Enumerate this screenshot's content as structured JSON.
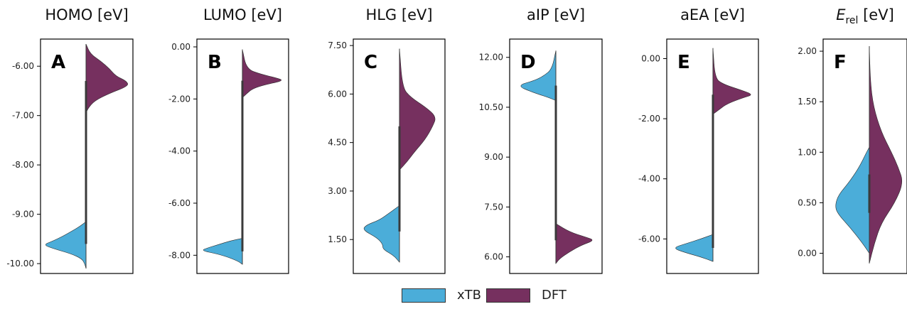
{
  "colors": {
    "xtb": "#4badd9",
    "dft": "#76305f",
    "axis": "#000000",
    "median": "#3a3a3a"
  },
  "legend": {
    "items": [
      {
        "label": "xTB",
        "color": "#4badd9"
      },
      {
        "label": "DFT",
        "color": "#76305f"
      }
    ]
  },
  "chart_data": [
    {
      "type": "violin",
      "letter": "A",
      "title": "HOMO [eV]",
      "ylim": [
        -10.2,
        -5.45
      ],
      "ticks": [
        -10.0,
        -9.0,
        -8.0,
        -7.0,
        -6.0
      ],
      "tick_labels": [
        "-10.00",
        "-9.00",
        "-8.00",
        "-7.00",
        "-6.00"
      ],
      "series": [
        {
          "name": "xTB",
          "side": "left",
          "range": [
            -10.1,
            -9.15
          ],
          "iqr": [
            -9.6,
            -9.2
          ],
          "profile": [
            [
              -10.1,
              0
            ],
            [
              -10.0,
              0.03
            ],
            [
              -9.9,
              0.1
            ],
            [
              -9.8,
              0.35
            ],
            [
              -9.7,
              0.75
            ],
            [
              -9.62,
              1.0
            ],
            [
              -9.55,
              0.8
            ],
            [
              -9.45,
              0.55
            ],
            [
              -9.35,
              0.35
            ],
            [
              -9.25,
              0.15
            ],
            [
              -9.15,
              0
            ]
          ]
        },
        {
          "name": "DFT",
          "side": "right",
          "range": [
            -6.95,
            -5.55
          ],
          "iqr": [
            -6.85,
            -6.3
          ],
          "profile": [
            [
              -6.95,
              0
            ],
            [
              -6.85,
              0.05
            ],
            [
              -6.7,
              0.2
            ],
            [
              -6.55,
              0.55
            ],
            [
              -6.4,
              1.0
            ],
            [
              -6.3,
              0.95
            ],
            [
              -6.2,
              0.7
            ],
            [
              -6.05,
              0.55
            ],
            [
              -5.9,
              0.35
            ],
            [
              -5.75,
              0.1
            ],
            [
              -5.55,
              0
            ]
          ]
        }
      ],
      "whisker": [
        -9.6,
        -6.3
      ],
      "center": -7.45
    },
    {
      "type": "violin",
      "letter": "B",
      "title": "LUMO [eV]",
      "ylim": [
        -8.7,
        0.3
      ],
      "ticks": [
        0.0,
        -2.0,
        -4.0,
        -6.0,
        -8.0
      ],
      "tick_labels": [
        "0.00",
        "-2.00",
        "-4.00",
        "-6.00",
        "-8.00"
      ],
      "series": [
        {
          "name": "xTB",
          "side": "left",
          "range": [
            -8.35,
            -7.35
          ],
          "iqr": [
            -7.85,
            -7.4
          ],
          "profile": [
            [
              -8.35,
              0
            ],
            [
              -8.25,
              0.08
            ],
            [
              -8.1,
              0.3
            ],
            [
              -7.95,
              0.6
            ],
            [
              -7.82,
              1.0
            ],
            [
              -7.72,
              0.85
            ],
            [
              -7.6,
              0.6
            ],
            [
              -7.45,
              0.3
            ],
            [
              -7.35,
              0
            ]
          ]
        },
        {
          "name": "DFT",
          "side": "right",
          "range": [
            -1.95,
            -0.1
          ],
          "iqr": [
            -1.85,
            -1.3
          ],
          "profile": [
            [
              -1.95,
              0
            ],
            [
              -1.8,
              0.1
            ],
            [
              -1.6,
              0.25
            ],
            [
              -1.45,
              0.55
            ],
            [
              -1.3,
              1.0
            ],
            [
              -1.2,
              0.85
            ],
            [
              -1.05,
              0.45
            ],
            [
              -0.85,
              0.1
            ],
            [
              -0.1,
              0
            ]
          ]
        }
      ],
      "whisker": [
        -7.85,
        -1.3
      ],
      "center": -3.5
    },
    {
      "type": "violin",
      "letter": "C",
      "title": "HLG [eV]",
      "ylim": [
        0.45,
        7.7
      ],
      "ticks": [
        1.5,
        3.0,
        4.5,
        6.0,
        7.5
      ],
      "tick_labels": [
        "1.50",
        "3.00",
        "4.50",
        "6.00",
        "7.50"
      ],
      "series": [
        {
          "name": "xTB",
          "side": "left",
          "range": [
            0.8,
            2.55
          ],
          "iqr": [
            1.75,
            2.5
          ],
          "profile": [
            [
              0.8,
              0
            ],
            [
              1.0,
              0.15
            ],
            [
              1.2,
              0.45
            ],
            [
              1.35,
              0.45
            ],
            [
              1.55,
              0.6
            ],
            [
              1.8,
              1.0
            ],
            [
              1.95,
              0.9
            ],
            [
              2.1,
              0.55
            ],
            [
              2.3,
              0.3
            ],
            [
              2.55,
              0
            ]
          ]
        },
        {
          "name": "DFT",
          "side": "right",
          "range": [
            3.65,
            7.4
          ],
          "iqr": [
            3.7,
            5.0
          ],
          "profile": [
            [
              3.65,
              0
            ],
            [
              3.9,
              0.2
            ],
            [
              4.2,
              0.4
            ],
            [
              4.6,
              0.7
            ],
            [
              5.0,
              0.9
            ],
            [
              5.3,
              1.0
            ],
            [
              5.6,
              0.7
            ],
            [
              5.9,
              0.3
            ],
            [
              6.2,
              0.08
            ],
            [
              7.4,
              0
            ]
          ]
        }
      ],
      "whisker": [
        1.75,
        5.0
      ],
      "center": 3.7
    },
    {
      "type": "violin",
      "letter": "D",
      "title": "aIP [eV]",
      "ylim": [
        5.5,
        12.55
      ],
      "ticks": [
        6.0,
        7.5,
        9.0,
        10.5,
        12.0
      ],
      "tick_labels": [
        "6.00",
        "7.50",
        "9.00",
        "10.50",
        "12.00"
      ],
      "series": [
        {
          "name": "xTB",
          "side": "left",
          "range": [
            10.7,
            12.2
          ],
          "iqr": [
            10.75,
            11.15
          ],
          "profile": [
            [
              10.7,
              0
            ],
            [
              10.8,
              0.2
            ],
            [
              10.95,
              0.6
            ],
            [
              11.15,
              1.0
            ],
            [
              11.3,
              0.55
            ],
            [
              11.45,
              0.3
            ],
            [
              11.65,
              0.1
            ],
            [
              12.2,
              0
            ]
          ]
        },
        {
          "name": "DFT",
          "side": "right",
          "range": [
            5.8,
            7.0
          ],
          "iqr": [
            6.5,
            6.9
          ],
          "profile": [
            [
              5.8,
              0
            ],
            [
              5.95,
              0.1
            ],
            [
              6.15,
              0.35
            ],
            [
              6.35,
              0.65
            ],
            [
              6.5,
              1.0
            ],
            [
              6.6,
              0.75
            ],
            [
              6.75,
              0.35
            ],
            [
              7.0,
              0
            ]
          ]
        }
      ],
      "whisker": [
        6.5,
        11.15
      ],
      "center": 7.95
    },
    {
      "type": "violin",
      "letter": "E",
      "title": "aEA [eV]",
      "ylim": [
        -7.15,
        0.65
      ],
      "ticks": [
        0.0,
        -2.0,
        -4.0,
        -6.0
      ],
      "tick_labels": [
        "0.00",
        "-2.00",
        "-4.00",
        "-6.00"
      ],
      "series": [
        {
          "name": "xTB",
          "side": "left",
          "range": [
            -6.75,
            -5.85
          ],
          "iqr": [
            -6.3,
            -5.9
          ],
          "profile": [
            [
              -6.75,
              0
            ],
            [
              -6.6,
              0.3
            ],
            [
              -6.45,
              0.7
            ],
            [
              -6.3,
              1.0
            ],
            [
              -6.15,
              0.65
            ],
            [
              -6.0,
              0.3
            ],
            [
              -5.85,
              0
            ]
          ]
        },
        {
          "name": "DFT",
          "side": "right",
          "range": [
            -1.85,
            0.35
          ],
          "iqr": [
            -1.8,
            -1.2
          ],
          "profile": [
            [
              -1.85,
              0
            ],
            [
              -1.7,
              0.15
            ],
            [
              -1.5,
              0.35
            ],
            [
              -1.3,
              0.75
            ],
            [
              -1.2,
              1.0
            ],
            [
              -1.05,
              0.7
            ],
            [
              -0.85,
              0.25
            ],
            [
              -0.65,
              0.05
            ],
            [
              0.35,
              0
            ]
          ]
        }
      ],
      "whisker": [
        -6.3,
        -1.2
      ],
      "center": -4.3
    },
    {
      "type": "violin",
      "letter": "F",
      "title": "E",
      "title_sub": "rel",
      "title_unit": " [eV]",
      "ylim": [
        -0.2,
        2.12
      ],
      "ticks": [
        0.0,
        0.5,
        1.0,
        1.5,
        2.0
      ],
      "tick_labels": [
        "0.00",
        "0.50",
        "1.00",
        "1.50",
        "2.00"
      ],
      "series": [
        {
          "name": "xTB",
          "side": "left",
          "range": [
            0.0,
            1.05
          ],
          "iqr": [
            0.4,
            0.78
          ],
          "profile": [
            [
              0.0,
              0
            ],
            [
              0.1,
              0.2
            ],
            [
              0.25,
              0.55
            ],
            [
              0.4,
              0.95
            ],
            [
              0.48,
              1.0
            ],
            [
              0.58,
              0.9
            ],
            [
              0.7,
              0.6
            ],
            [
              0.85,
              0.3
            ],
            [
              1.0,
              0.08
            ],
            [
              1.05,
              0
            ]
          ]
        },
        {
          "name": "DFT",
          "side": "right",
          "range": [
            -0.1,
            2.05
          ],
          "iqr": [
            0.4,
            0.78
          ],
          "profile": [
            [
              -0.1,
              0
            ],
            [
              0.1,
              0.15
            ],
            [
              0.3,
              0.35
            ],
            [
              0.5,
              0.75
            ],
            [
              0.7,
              1.0
            ],
            [
              0.85,
              0.85
            ],
            [
              1.0,
              0.65
            ],
            [
              1.2,
              0.35
            ],
            [
              1.45,
              0.12
            ],
            [
              1.7,
              0.03
            ],
            [
              2.05,
              0
            ]
          ]
        }
      ],
      "whisker": [
        0.4,
        0.78
      ],
      "center": 0.4
    }
  ]
}
